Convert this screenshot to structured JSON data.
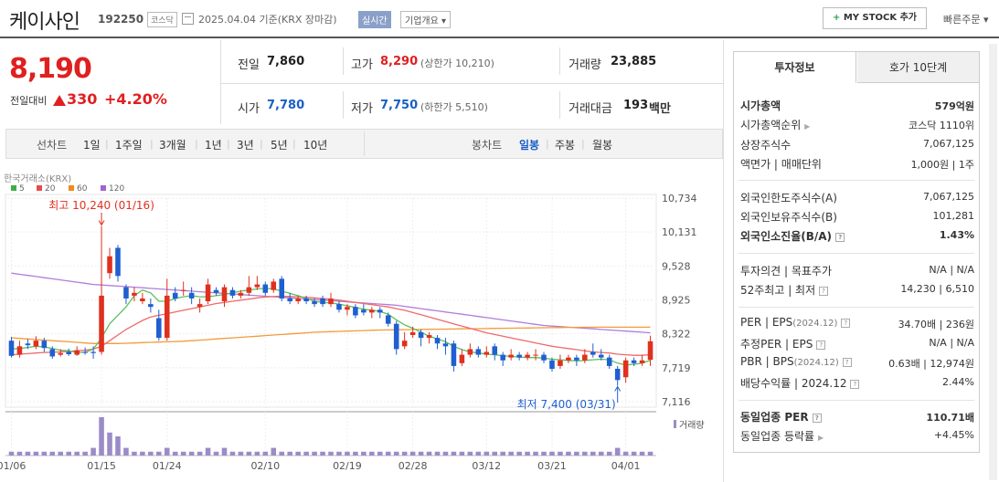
{
  "header": {
    "stock_name": "케이사인",
    "stock_code": "192250",
    "market": "코스닥",
    "date_text": "2025.04.04  기준(KRX 장마감)",
    "realtime": "실시간",
    "company_info": "기업개요 ▾",
    "mystock_label": "MY STOCK 추가",
    "quick_order": "빠른주문 ▾"
  },
  "price": {
    "current": "8,190",
    "change_label": "전일대비",
    "change": "330",
    "change_pct": "+4.20%"
  },
  "quote": {
    "prev_label": "전일",
    "prev": "7,860",
    "high_label": "고가",
    "high": "8,290",
    "upper_limit": "(상한가 10,210)",
    "volume_label": "거래량",
    "volume": "23,885",
    "open_label": "시가",
    "open": "7,780",
    "low_label": "저가",
    "low": "7,750",
    "lower_limit": "(하한가 5,510)",
    "amount_label": "거래대금",
    "amount": "193",
    "amount_unit": "백만"
  },
  "period_bar": {
    "line_label": "선차트",
    "line_items": [
      "1일",
      "1주일",
      "3개월",
      "1년",
      "3년",
      "5년",
      "10년"
    ],
    "candle_label": "봉차트",
    "candle_items": [
      "일봉",
      "주봉",
      "월봉"
    ],
    "candle_selected": 0
  },
  "right_panel": {
    "tab_invest": "투자정보",
    "tab_quote": "호가 10단계",
    "market_cap_label": "시가총액",
    "market_cap": "579억원",
    "cap_rank_label": "시가총액순위",
    "cap_rank": "코스닥 1110위",
    "shares_label": "상장주식수",
    "shares": "7,067,125",
    "par_label": "액면가 | 매매단위",
    "par": "1,000원 | 1주",
    "foreign_limit_label": "외국인한도주식수(A)",
    "foreign_limit": "7,067,125",
    "foreign_hold_label": "외국인보유주식수(B)",
    "foreign_hold": "101,281",
    "foreign_ratio_label": "외국인소진율(B/A)",
    "foreign_ratio": "1.43%",
    "opinion_label": "투자의견 | 목표주가",
    "opinion": "N/A | N/A",
    "week52_label": "52주최고 | 최저",
    "week52": "14,230 | 6,510",
    "per_label": "PER | EPS",
    "per_period": "(2024.12)",
    "per": "34.70배 | 236원",
    "est_per_label": "추정PER | EPS",
    "est_per": "N/A | N/A",
    "pbr_label": "PBR | BPS",
    "pbr_period": "(2024.12)",
    "pbr": "0.63배 | 12,974원",
    "div_label": "배당수익률 | 2024.12",
    "div": "2.44%",
    "ind_per_label": "동일업종 PER",
    "ind_per": "110.71배",
    "ind_rate_label": "동일업종 등락률",
    "ind_rate": "+4.45%"
  },
  "chart_data": {
    "type": "candlestick",
    "source_label": "한국거래소(KRX)",
    "legend": [
      {
        "name": "5",
        "color": "#3cb043"
      },
      {
        "name": "20",
        "color": "#e84b4b"
      },
      {
        "name": "60",
        "color": "#f08a1c"
      },
      {
        "name": "120",
        "color": "#a064d0"
      }
    ],
    "y_ticks": [
      "10,734",
      "10,131",
      "9,528",
      "8,925",
      "8,322",
      "7,719",
      "7,116"
    ],
    "ylim": [
      7116,
      10734
    ],
    "x_ticks": [
      "01/06",
      "01/15",
      "01/24",
      "02/10",
      "02/19",
      "02/28",
      "03/12",
      "03/21",
      "04/01"
    ],
    "high_annotation": "최고 10,240 (01/16)",
    "low_annotation": "최저 7,400 (03/31)",
    "volume_label": "거래량",
    "candles": [
      [
        8200,
        7930,
        8270,
        7900
      ],
      [
        7950,
        8100,
        8200,
        7900
      ],
      [
        8150,
        8120,
        8230,
        8050
      ],
      [
        8100,
        8200,
        8280,
        8050
      ],
      [
        8200,
        8070,
        8250,
        8000
      ],
      [
        8050,
        7920,
        8100,
        7880
      ],
      [
        7950,
        7980,
        8050,
        7920
      ],
      [
        8000,
        7960,
        8060,
        7930
      ],
      [
        7950,
        8030,
        8100,
        7930
      ],
      [
        8000,
        7990,
        8080,
        7950
      ],
      [
        8000,
        7980,
        8100,
        7880
      ],
      [
        8000,
        9000,
        10240,
        7950
      ],
      [
        9400,
        9700,
        9850,
        9300
      ],
      [
        9850,
        9350,
        9900,
        9250
      ],
      [
        9150,
        8950,
        9200,
        8850
      ],
      [
        9000,
        9050,
        9150,
        8900
      ],
      [
        8900,
        8950,
        9050,
        8850
      ],
      [
        8850,
        8800,
        8950,
        8700
      ],
      [
        8600,
        8250,
        8750,
        8200
      ],
      [
        8250,
        9000,
        9300,
        8200
      ],
      [
        9050,
        8950,
        9150,
        8900
      ],
      [
        9100,
        9100,
        9250,
        9000
      ],
      [
        9050,
        8950,
        9150,
        8850
      ],
      [
        8800,
        8850,
        8950,
        8700
      ],
      [
        8900,
        9200,
        9300,
        8850
      ],
      [
        9100,
        9050,
        9150,
        9000
      ],
      [
        8900,
        9150,
        9200,
        8800
      ],
      [
        9100,
        9000,
        9150,
        8950
      ],
      [
        9000,
        9050,
        9100,
        8950
      ],
      [
        9050,
        9150,
        9350,
        9000
      ],
      [
        9150,
        9200,
        9350,
        9100
      ],
      [
        9200,
        9050,
        9250,
        9000
      ],
      [
        9100,
        9250,
        9300,
        9050
      ],
      [
        9300,
        8950,
        9350,
        8900
      ],
      [
        8950,
        8900,
        9050,
        8850
      ],
      [
        8900,
        8950,
        9000,
        8850
      ],
      [
        8950,
        8900,
        9000,
        8850
      ],
      [
        8900,
        8850,
        8950,
        8800
      ],
      [
        8950,
        8850,
        9000,
        8800
      ],
      [
        8850,
        8950,
        9050,
        8800
      ],
      [
        8850,
        8750,
        8900,
        8700
      ],
      [
        8750,
        8800,
        8850,
        8650
      ],
      [
        8800,
        8650,
        8850,
        8600
      ],
      [
        8750,
        8700,
        8850,
        8650
      ],
      [
        8700,
        8750,
        8800,
        8600
      ],
      [
        8750,
        8700,
        8800,
        8600
      ],
      [
        8650,
        8500,
        8700,
        8450
      ],
      [
        8500,
        8050,
        8550,
        7950
      ],
      [
        8100,
        8200,
        8350,
        8050
      ],
      [
        8300,
        8350,
        8450,
        8250
      ],
      [
        8350,
        8250,
        8400,
        8100
      ],
      [
        8250,
        8300,
        8350,
        8150
      ],
      [
        8250,
        8150,
        8300,
        8050
      ],
      [
        8150,
        8100,
        8250,
        7950
      ],
      [
        8150,
        7750,
        8200,
        7650
      ],
      [
        7800,
        7950,
        8050,
        7750
      ],
      [
        7950,
        8050,
        8150,
        7900
      ],
      [
        8050,
        7950,
        8100,
        7900
      ],
      [
        7950,
        8000,
        8100,
        7900
      ],
      [
        8100,
        7950,
        8150,
        7850
      ],
      [
        7950,
        7850,
        8000,
        7750
      ],
      [
        7900,
        7950,
        8050,
        7850
      ],
      [
        7950,
        7900,
        8000,
        7850
      ],
      [
        7900,
        7950,
        8000,
        7850
      ],
      [
        7950,
        7950,
        8050,
        7850
      ],
      [
        7950,
        7850,
        8000,
        7800
      ],
      [
        7850,
        7700,
        7900,
        7650
      ],
      [
        7750,
        7850,
        7950,
        7700
      ],
      [
        7850,
        7900,
        7950,
        7800
      ],
      [
        7900,
        7850,
        7950,
        7750
      ],
      [
        7850,
        7950,
        8050,
        7800
      ],
      [
        8000,
        7950,
        8150,
        7900
      ],
      [
        7950,
        7900,
        8050,
        7850
      ],
      [
        7900,
        7750,
        7950,
        7700
      ],
      [
        7700,
        7500,
        7750,
        7400
      ],
      [
        7550,
        7850,
        7900,
        7450
      ],
      [
        7850,
        7800,
        7900,
        7750
      ],
      [
        7800,
        7850,
        7950,
        7750
      ],
      [
        7860,
        8190,
        8290,
        7750
      ]
    ],
    "volumes": [
      1,
      1,
      1,
      1,
      1,
      1,
      1,
      1,
      1,
      1,
      2,
      10,
      6,
      5,
      2,
      1,
      1,
      1,
      1,
      2,
      1,
      1,
      1,
      1,
      2,
      1,
      2,
      1,
      1,
      1,
      1,
      1,
      2,
      1,
      1,
      1,
      1,
      1,
      1,
      1,
      1,
      1,
      1,
      1,
      1,
      1,
      1,
      1,
      1,
      1,
      1,
      1,
      1,
      1,
      1,
      1,
      1,
      1,
      1,
      1,
      1,
      1,
      1,
      1,
      1,
      1,
      1,
      1,
      1,
      1,
      1,
      1,
      1,
      1,
      2,
      1,
      1,
      1,
      1
    ],
    "ma5": [
      8050,
      8060,
      8080,
      8100,
      8090,
      8060,
      8030,
      8020,
      7990,
      7990,
      8050,
      8250,
      8500,
      8650,
      8800,
      9000,
      9100,
      9050,
      8900,
      8900,
      8950,
      8980,
      9000,
      8980,
      8980,
      9000,
      9020,
      9050,
      9080,
      9100,
      9120,
      9130,
      9120,
      9080,
      9040,
      9000,
      8950,
      8900,
      8880,
      8870,
      8850,
      8820,
      8790,
      8760,
      8740,
      8720,
      8670,
      8570,
      8480,
      8420,
      8350,
      8280,
      8230,
      8180,
      8100,
      8040,
      8000,
      7980,
      7960,
      7950,
      7930,
      7920,
      7910,
      7900,
      7900,
      7890,
      7870,
      7860,
      7850,
      7840,
      7850,
      7860,
      7870,
      7860,
      7800,
      7770,
      7780,
      7800,
      7850
    ],
    "ma20": [
      7950,
      7960,
      7970,
      7980,
      7990,
      7995,
      8000,
      8010,
      8020,
      8030,
      8050,
      8100,
      8200,
      8300,
      8400,
      8480,
      8560,
      8620,
      8650,
      8680,
      8710,
      8740,
      8770,
      8800,
      8830,
      8860,
      8880,
      8900,
      8920,
      8940,
      8960,
      8975,
      8985,
      8990,
      8985,
      8980,
      8970,
      8960,
      8950,
      8935,
      8920,
      8900,
      8880,
      8860,
      8840,
      8820,
      8800,
      8770,
      8740,
      8700,
      8660,
      8620,
      8580,
      8540,
      8500,
      8460,
      8420,
      8380,
      8340,
      8310,
      8280,
      8250,
      8220,
      8190,
      8160,
      8130,
      8100,
      8080,
      8060,
      8040,
      8020,
      8000,
      7990,
      7980,
      7960,
      7950,
      7940,
      7940,
      7950
    ],
    "ma60": [
      8250,
      8240,
      8230,
      8220,
      8210,
      8200,
      8190,
      8180,
      8170,
      8160,
      8150,
      8150,
      8150,
      8150,
      8155,
      8160,
      8165,
      8170,
      8175,
      8180,
      8185,
      8190,
      8200,
      8210,
      8220,
      8230,
      8240,
      8250,
      8260,
      8270,
      8280,
      8290,
      8300,
      8310,
      8320,
      8330,
      8340,
      8350,
      8355,
      8360,
      8365,
      8370,
      8375,
      8380,
      8385,
      8390,
      8392,
      8394,
      8396,
      8398,
      8400,
      8402,
      8404,
      8406,
      8408,
      8410,
      8412,
      8414,
      8416,
      8418,
      8420,
      8422,
      8424,
      8426,
      8428,
      8430,
      8432,
      8434,
      8436,
      8437,
      8438,
      8439,
      8440,
      8440,
      8440,
      8440,
      8440,
      8440,
      8440
    ],
    "ma120": [
      9400,
      9380,
      9360,
      9340,
      9320,
      9300,
      9280,
      9260,
      9240,
      9220,
      9200,
      9190,
      9180,
      9170,
      9160,
      9150,
      9140,
      9130,
      9120,
      9110,
      9100,
      9090,
      9080,
      9070,
      9060,
      9050,
      9040,
      9030,
      9020,
      9010,
      9000,
      8990,
      8980,
      8970,
      8960,
      8950,
      8940,
      8930,
      8920,
      8910,
      8900,
      8890,
      8880,
      8870,
      8860,
      8850,
      8840,
      8830,
      8810,
      8790,
      8770,
      8750,
      8730,
      8710,
      8690,
      8670,
      8650,
      8630,
      8610,
      8590,
      8570,
      8550,
      8530,
      8510,
      8490,
      8470,
      8460,
      8450,
      8440,
      8430,
      8420,
      8410,
      8400,
      8390,
      8380,
      8370,
      8360,
      8350,
      8340
    ]
  }
}
